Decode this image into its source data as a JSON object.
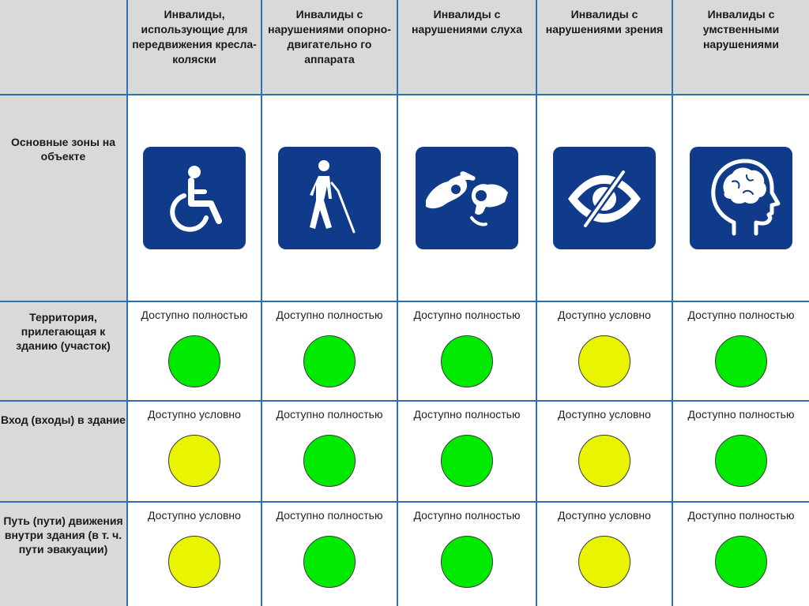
{
  "corner": "",
  "zones_label": "Основные зоны на объекте",
  "categories": [
    {
      "label": "Инвалиды, использующие для передвижения кресла-коляски",
      "icon": "wheelchair-icon"
    },
    {
      "label": "Инвалиды с нарушениями опорно-двигательно го аппарата",
      "icon": "walking-cane-icon"
    },
    {
      "label": "Инвалиды с нарушениями слуха",
      "icon": "sign-language-icon"
    },
    {
      "label": "Инвалиды с нарушениями зрения",
      "icon": "crossed-eye-icon"
    },
    {
      "label": "Инвалиды с умственными нарушениями",
      "icon": "head-brain-icon"
    }
  ],
  "colors": {
    "full": "#00ea00",
    "conditional": "#e8f400",
    "icon_bg": "#0f3b8a",
    "border": "#2e6fb8",
    "header_bg": "#d9d9d9"
  },
  "zones": [
    {
      "name": "Территория, прилегающая к зданию (участок)",
      "statuses": [
        {
          "text": "Доступно полностью",
          "level": "full"
        },
        {
          "text": "Доступно полностью",
          "level": "full"
        },
        {
          "text": "Доступно полностью",
          "level": "full"
        },
        {
          "text": "Доступно условно",
          "level": "conditional"
        },
        {
          "text": "Доступно полностью",
          "level": "full"
        }
      ]
    },
    {
      "name": "Вход (входы) в здание",
      "statuses": [
        {
          "text": "Доступно условно",
          "level": "conditional"
        },
        {
          "text": "Доступно полностью",
          "level": "full"
        },
        {
          "text": "Доступно полностью",
          "level": "full"
        },
        {
          "text": "Доступно условно",
          "level": "conditional"
        },
        {
          "text": "Доступно полностью",
          "level": "full"
        }
      ]
    },
    {
      "name": "Путь (пути) движения внутри здания (в т. ч. пути эвакуации)",
      "statuses": [
        {
          "text": "Доступно условно",
          "level": "conditional"
        },
        {
          "text": "Доступно полностью",
          "level": "full"
        },
        {
          "text": "Доступно полностью",
          "level": "full"
        },
        {
          "text": "Доступно условно",
          "level": "conditional"
        },
        {
          "text": "Доступно полностью",
          "level": "full"
        }
      ]
    }
  ]
}
